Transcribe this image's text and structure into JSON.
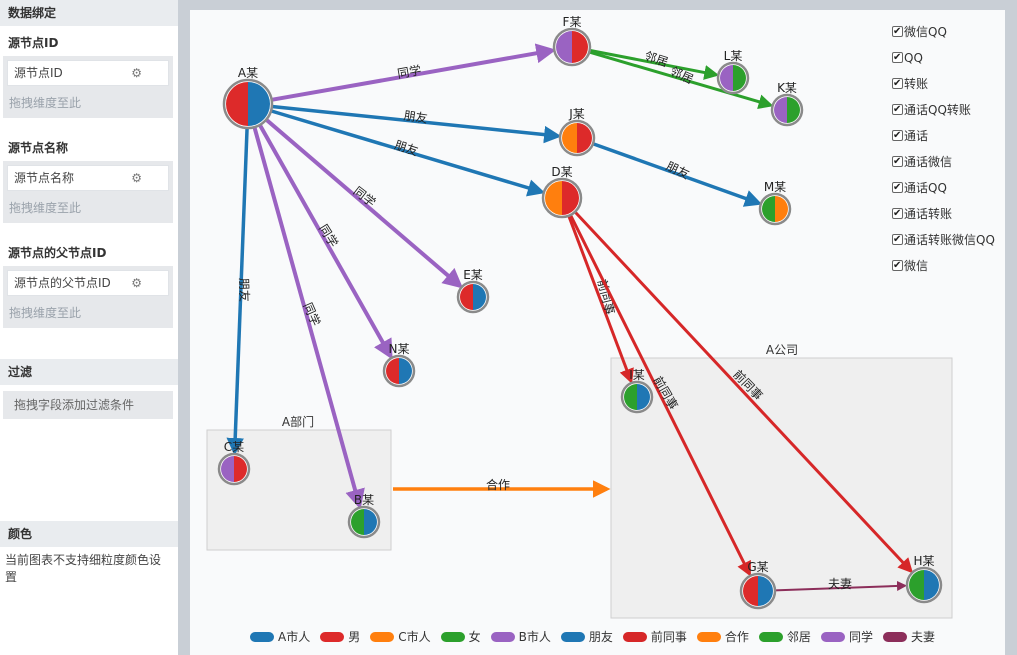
{
  "panel": {
    "header_binding": "数据绑定",
    "source_id": {
      "label": "源节点ID",
      "field": "源节点ID",
      "drop_hint": "拖拽维度至此"
    },
    "source_name": {
      "label": "源节点名称",
      "field": "源节点名称",
      "drop_hint": "拖拽维度至此"
    },
    "source_parent": {
      "label": "源节点的父节点ID",
      "field": "源节点的父节点ID",
      "drop_hint": "拖拽维度至此"
    },
    "filter": {
      "header": "过滤",
      "hint": "拖拽字段添加过滤条件"
    },
    "color": {
      "header": "颜色",
      "note": "当前图表不支持细粒度颜色设置"
    }
  },
  "filters": [
    "微信QQ",
    "QQ",
    "转账",
    "通话QQ转账",
    "通话",
    "通话微信",
    "通话QQ",
    "通话转账",
    "通话转账微信QQ",
    "微信"
  ],
  "groups": {
    "a_dept": "A部门",
    "a_company": "A公司"
  },
  "nodes": [
    {
      "id": "A",
      "label": "A某",
      "left": "#dd2a2a",
      "right": "#1f77b4"
    },
    {
      "id": "F",
      "label": "F某",
      "left": "#9a63c2",
      "right": "#dd2a2a"
    },
    {
      "id": "L",
      "label": "L某",
      "left": "#9a63c2",
      "right": "#2ca02c"
    },
    {
      "id": "K",
      "label": "K某",
      "left": "#9a63c2",
      "right": "#2ca02c"
    },
    {
      "id": "J",
      "label": "J某",
      "left": "#ff7f0e",
      "right": "#dd2a2a"
    },
    {
      "id": "M",
      "label": "M某",
      "left": "#2ca02c",
      "right": "#ff7f0e"
    },
    {
      "id": "D",
      "label": "D某",
      "left": "#ff7f0e",
      "right": "#dd2a2a"
    },
    {
      "id": "E",
      "label": "E某",
      "left": "#dd2a2a",
      "right": "#1f77b4"
    },
    {
      "id": "N",
      "label": "N某",
      "left": "#dd2a2a",
      "right": "#1f77b4"
    },
    {
      "id": "C",
      "label": "C某",
      "left": "#9a63c2",
      "right": "#dd2a2a"
    },
    {
      "id": "B",
      "label": "B某",
      "left": "#2ca02c",
      "right": "#1f77b4"
    },
    {
      "id": "I",
      "label": "I某",
      "left": "#2ca02c",
      "right": "#1f77b4"
    },
    {
      "id": "G",
      "label": "G某",
      "left": "#dd2a2a",
      "right": "#1f77b4"
    },
    {
      "id": "H",
      "label": "H某",
      "left": "#2ca02c",
      "right": "#1f77b4"
    }
  ],
  "edges": [
    {
      "from": "A",
      "to": "F",
      "label": "同学",
      "type": "classmate"
    },
    {
      "from": "F",
      "to": "L",
      "label": "邻居",
      "type": "neighbor"
    },
    {
      "from": "F",
      "to": "K",
      "label": "邻居",
      "type": "neighbor"
    },
    {
      "from": "A",
      "to": "J",
      "label": "朋友",
      "type": "friend"
    },
    {
      "from": "A",
      "to": "D",
      "label": "朋友",
      "type": "friend"
    },
    {
      "from": "J",
      "to": "M",
      "label": "朋友",
      "type": "friend"
    },
    {
      "from": "A",
      "to": "E",
      "label": "同学",
      "type": "classmate"
    },
    {
      "from": "A",
      "to": "N",
      "label": "同学",
      "type": "classmate"
    },
    {
      "from": "A",
      "to": "C",
      "label": "朋友",
      "type": "friend"
    },
    {
      "from": "A",
      "to": "B",
      "label": "同学",
      "type": "classmate"
    },
    {
      "from": "D",
      "to": "I",
      "label": "前同事",
      "type": "excolleague"
    },
    {
      "from": "D",
      "to": "G",
      "label": "前同事",
      "type": "excolleague"
    },
    {
      "from": "D",
      "to": "H",
      "label": "前同事",
      "type": "excolleague"
    },
    {
      "from": "G",
      "to": "H",
      "label": "夫妻",
      "type": "spouse"
    },
    {
      "from": "A部门",
      "to": "A公司",
      "label": "合作",
      "type": "cooperate"
    }
  ],
  "legend": [
    {
      "label": "A市人",
      "color": "#1f77b4"
    },
    {
      "label": "男",
      "color": "#dd2a2a"
    },
    {
      "label": "C市人",
      "color": "#ff7f0e"
    },
    {
      "label": "女",
      "color": "#2ca02c"
    },
    {
      "label": "B市人",
      "color": "#9a63c2"
    },
    {
      "label": "朋友",
      "color": "#1f77b4"
    },
    {
      "label": "前同事",
      "color": "#d62728"
    },
    {
      "label": "合作",
      "color": "#ff7f0e"
    },
    {
      "label": "邻居",
      "color": "#2ca02c"
    },
    {
      "label": "同学",
      "color": "#9a63c2"
    },
    {
      "label": "夫妻",
      "color": "#8c2e5a"
    }
  ]
}
